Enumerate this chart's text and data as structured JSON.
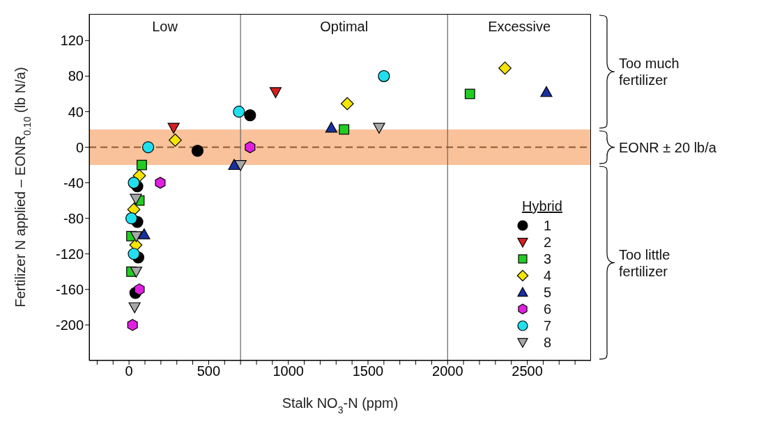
{
  "chart_data": {
    "type": "scatter",
    "xlabel": "Stalk NO$_{3}$-N (ppm)",
    "ylabel": "Fertilizer N applied – EONR$_{0.10}$ (lb N/a)",
    "legend_title": "Hybrid",
    "legend": "bottom right",
    "grid": false,
    "xlim": [
      -250,
      2900
    ],
    "ylim": [
      -240,
      150
    ],
    "xticks": [
      {
        "value": -200,
        "label": null
      },
      {
        "value": -100,
        "label": null
      },
      0,
      {
        "value": 100,
        "label": null
      },
      {
        "value": 200,
        "label": null
      },
      {
        "value": 300,
        "label": null
      },
      {
        "value": 400,
        "label": null
      },
      500,
      {
        "value": 600,
        "label": null
      },
      {
        "value": 700,
        "label": null
      },
      {
        "value": 800,
        "label": null
      },
      {
        "value": 900,
        "label": null
      },
      1000,
      {
        "value": 1100,
        "label": null
      },
      {
        "value": 1200,
        "label": null
      },
      {
        "value": 1300,
        "label": null
      },
      {
        "value": 1400,
        "label": null
      },
      1500,
      {
        "value": 1600,
        "label": null
      },
      {
        "value": 1700,
        "label": null
      },
      {
        "value": 1800,
        "label": null
      },
      {
        "value": 1900,
        "label": null
      },
      2000,
      {
        "value": 2100,
        "label": null
      },
      {
        "value": 2200,
        "label": null
      },
      {
        "value": 2300,
        "label": null
      },
      {
        "value": 2400,
        "label": null
      },
      2500,
      {
        "value": 2600,
        "label": null
      },
      {
        "value": 2700,
        "label": null
      },
      {
        "value": 2800,
        "label": null
      }
    ],
    "yticks": [
      -200,
      -160,
      -120,
      -80,
      -40,
      0,
      40,
      80,
      120
    ],
    "ref_lines": [
      {
        "axis": "y",
        "value": 0,
        "color": "#8b5a2b",
        "line_style": "dashed"
      },
      {
        "axis": "x",
        "value": 700,
        "color": "#666666",
        "line_style": "solid"
      },
      {
        "axis": "x",
        "value": 2000,
        "color": "#666666",
        "line_style": "solid"
      }
    ],
    "bands": [
      {
        "axis": "y",
        "from": -20,
        "to": 20,
        "color": "#f9c29b"
      }
    ],
    "annotations": [
      "Low",
      "Optimal",
      "Excessive",
      "Too much fertilizer",
      "EONR ± 20 lb/a",
      "Too little fertilizer"
    ],
    "series": [
      {
        "name": "1",
        "color": "#000000",
        "marker": "circle",
        "x": [
          52,
          52,
          58,
          40,
          430,
          760
        ],
        "values": [
          -44,
          -84,
          -124,
          -164,
          -4,
          36
        ]
      },
      {
        "name": "2",
        "color": "#d42020",
        "marker": "triangle-down",
        "x": [
          280,
          920
        ],
        "values": [
          22,
          62
        ]
      },
      {
        "name": "3",
        "color": "#22cc22",
        "marker": "square",
        "x": [
          80,
          65,
          15,
          15,
          1350,
          2140
        ],
        "values": [
          -20,
          -60,
          -100,
          -140,
          20,
          60
        ]
      },
      {
        "name": "4",
        "color": "#f5e600",
        "marker": "diamond",
        "x": [
          290,
          65,
          30,
          43,
          1370,
          2360
        ],
        "values": [
          8,
          -32,
          -70,
          -110,
          49,
          89
        ]
      },
      {
        "name": "5",
        "color": "#1a2fa0",
        "marker": "triangle",
        "x": [
          660,
          95,
          1270,
          2620
        ],
        "values": [
          -20,
          -98,
          22,
          62
        ]
      },
      {
        "name": "6",
        "color": "#e020e0",
        "x": [
          196,
          65,
          22,
          760
        ],
        "values": [
          -40,
          -160,
          -200,
          0
        ]
      },
      {
        "name": "7",
        "color": "#20e0f0",
        "marker": "circle",
        "x": [
          690,
          1600,
          120,
          30,
          15,
          30
        ],
        "values": [
          40,
          80,
          0,
          -40,
          -80,
          -120
        ]
      },
      {
        "name": "8",
        "color": "#a8a8a8",
        "marker": "triangle-down",
        "x": [
          700,
          1570,
          43,
          45,
          45,
          35
        ],
        "values": [
          -20,
          22,
          -58,
          -100,
          -140,
          -180
        ]
      }
    ]
  }
}
